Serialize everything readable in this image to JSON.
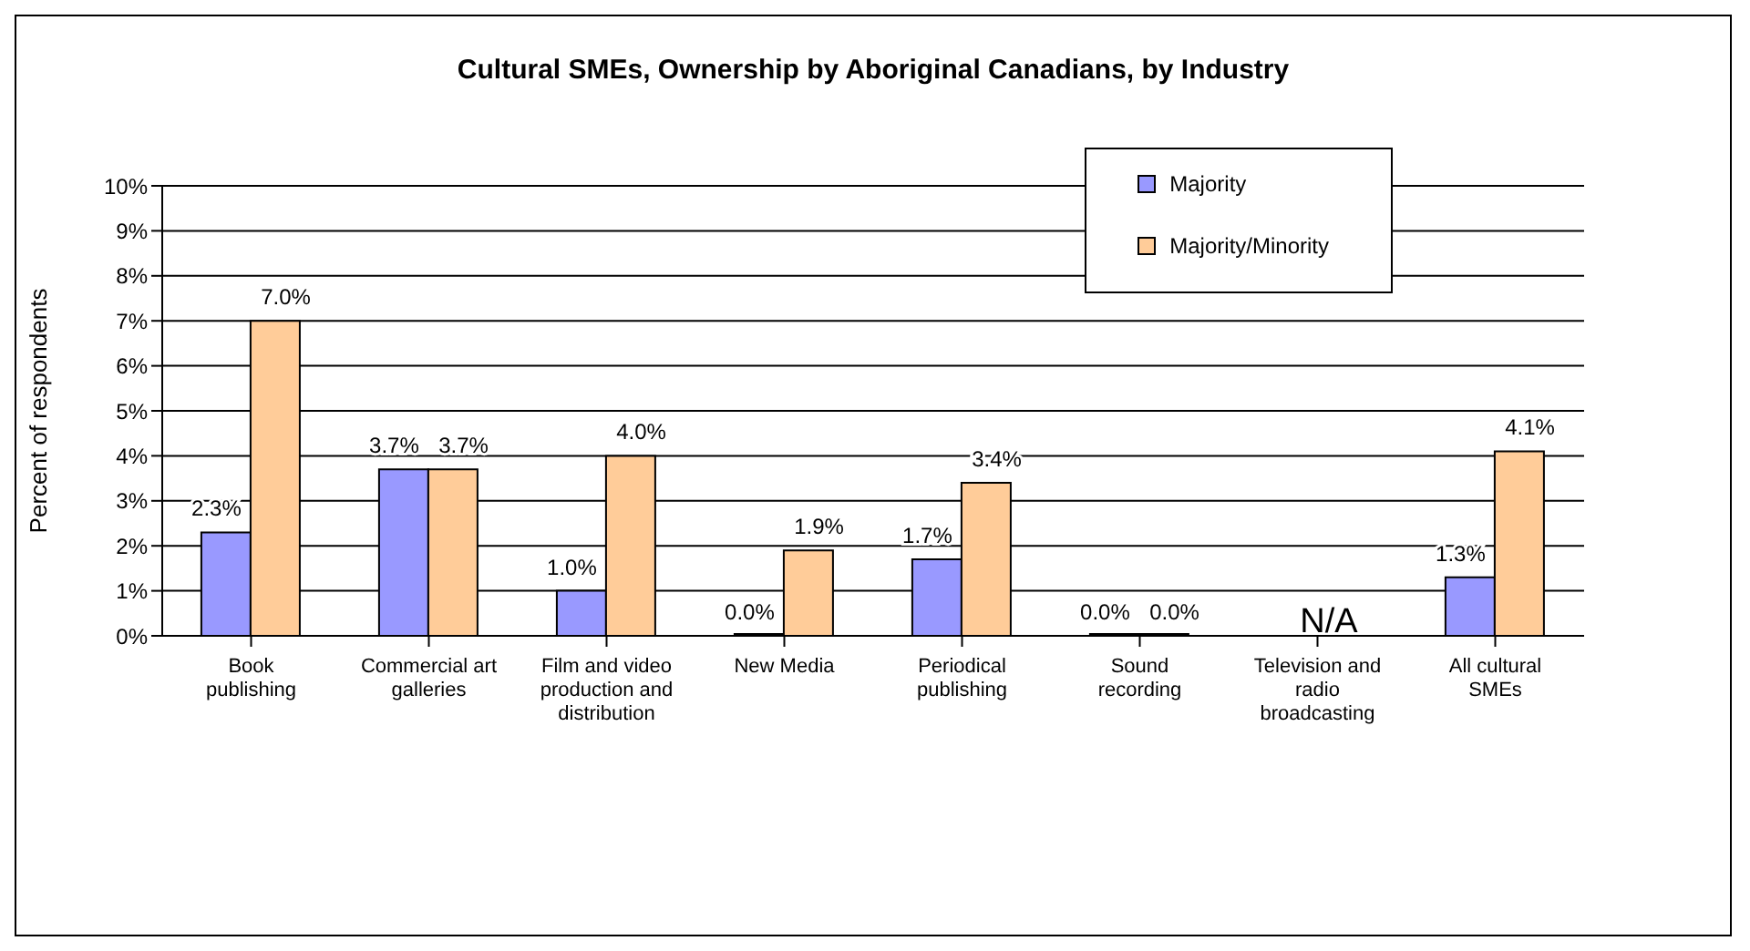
{
  "chart_data": {
    "type": "bar",
    "title": "Cultural SMEs, Ownership by Aboriginal Canadians, by Industry",
    "ylabel": "Percent of respondents",
    "categories": [
      "Book publishing",
      "Commercial art galleries",
      "Film and video production and distribution",
      "New Media",
      "Periodical publishing",
      "Sound recording",
      "Television and radio broadcasting",
      "All cultural SMEs"
    ],
    "series": [
      {
        "name": "Majority",
        "color": "#9999ff",
        "values": [
          2.3,
          3.7,
          1.0,
          0.0,
          1.7,
          0.0,
          null,
          1.3
        ],
        "value_labels": [
          "2.3%",
          "3.7%",
          "1.0%",
          "0.0%",
          "1.7%",
          "0.0%",
          null,
          "1.3%"
        ]
      },
      {
        "name": "Majority/Minority",
        "color": "#ffcc99",
        "values": [
          7.0,
          3.7,
          4.0,
          1.9,
          3.4,
          0.0,
          null,
          4.1
        ],
        "value_labels": [
          "7.0%",
          "3.7%",
          "4.0%",
          "1.9%",
          "3.4%",
          "0.0%",
          null,
          "4.1%"
        ]
      }
    ],
    "ylim": [
      0,
      10
    ],
    "yticks": [
      {
        "value": 0,
        "label": "0%"
      },
      {
        "value": 1,
        "label": "1%"
      },
      {
        "value": 2,
        "label": "2%"
      },
      {
        "value": 3,
        "label": "3%"
      },
      {
        "value": 4,
        "label": "4%"
      },
      {
        "value": 5,
        "label": "5%"
      },
      {
        "value": 6,
        "label": "6%"
      },
      {
        "value": 7,
        "label": "7%"
      },
      {
        "value": 8,
        "label": "8%"
      },
      {
        "value": 9,
        "label": "9%"
      },
      {
        "value": 10,
        "label": "10%"
      }
    ],
    "grid": "y",
    "legend": "top right",
    "annotations": [
      "N/A"
    ]
  }
}
